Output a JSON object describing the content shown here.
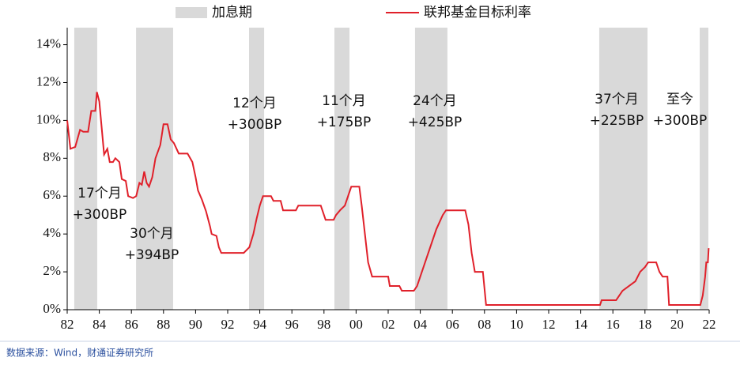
{
  "chart_data": {
    "type": "line",
    "shaded_name": "加息期",
    "shaded_color": "#d9d9d9",
    "shaded_periods": [
      [
        1982.44,
        1983.87
      ],
      [
        1986.29,
        1988.6
      ],
      [
        1993.33,
        1994.27
      ],
      [
        1998.65,
        1999.59
      ],
      [
        2003.67,
        2005.69
      ],
      [
        2015.15,
        2018.16
      ],
      [
        2021.41,
        2021.95
      ]
    ],
    "x": [
      1982.0,
      1982.2,
      1982.5,
      1982.8,
      1983.0,
      1983.3,
      1983.5,
      1983.75,
      1983.85,
      1984.0,
      1984.15,
      1984.3,
      1984.5,
      1984.65,
      1984.85,
      1985.0,
      1985.25,
      1985.4,
      1985.65,
      1985.8,
      1986.1,
      1986.3,
      1986.5,
      1986.65,
      1986.8,
      1986.95,
      1987.1,
      1987.3,
      1987.5,
      1987.8,
      1988.0,
      1988.25,
      1988.45,
      1988.65,
      1988.95,
      1989.5,
      1989.8,
      1990.0,
      1990.15,
      1990.4,
      1990.65,
      1990.9,
      1991.0,
      1991.3,
      1991.45,
      1991.6,
      1992.0,
      1993.0,
      1993.35,
      1993.6,
      1993.8,
      1994.0,
      1994.2,
      1994.7,
      1994.85,
      1995.3,
      1995.45,
      1996.25,
      1996.4,
      1997.8,
      1998.1,
      1998.6,
      1998.75,
      1999.0,
      1999.3,
      1999.5,
      1999.7,
      2000.2,
      2000.35,
      2000.55,
      2000.75,
      2001.0,
      2002.0,
      2002.1,
      2002.7,
      2002.85,
      2003.6,
      2003.8,
      2004.0,
      2004.3,
      2004.6,
      2005.0,
      2005.4,
      2005.6,
      2006.8,
      2007.0,
      2007.2,
      2007.4,
      2007.9,
      2008.1,
      2015.2,
      2015.3,
      2016.2,
      2016.4,
      2016.6,
      2017.0,
      2017.4,
      2017.7,
      2018.0,
      2018.2,
      2018.7,
      2018.9,
      2019.1,
      2019.4,
      2019.5,
      2021.45,
      2021.6,
      2021.75,
      2021.82,
      2021.92,
      2021.97
    ],
    "series": [
      {
        "name": "联邦基金目标利率",
        "color": "#e0202a",
        "values": [
          10.0,
          8.5,
          8.6,
          9.5,
          9.4,
          9.4,
          10.5,
          10.5,
          11.5,
          11.0,
          9.6,
          8.2,
          8.5,
          7.8,
          7.8,
          8.0,
          7.8,
          6.9,
          6.8,
          6.0,
          5.9,
          6.0,
          6.7,
          6.6,
          7.3,
          6.7,
          6.5,
          7.0,
          8.0,
          8.7,
          9.8,
          9.8,
          9.0,
          8.8,
          8.25,
          8.25,
          7.8,
          7.0,
          6.3,
          5.8,
          5.2,
          4.4,
          4.0,
          3.9,
          3.3,
          3.0,
          3.0,
          3.0,
          3.3,
          4.0,
          4.8,
          5.5,
          6.0,
          6.0,
          5.75,
          5.75,
          5.25,
          5.25,
          5.5,
          5.5,
          4.75,
          4.75,
          5.0,
          5.25,
          5.5,
          6.0,
          6.5,
          6.5,
          5.5,
          4.0,
          2.5,
          1.75,
          1.75,
          1.25,
          1.25,
          1.0,
          1.0,
          1.25,
          1.75,
          2.5,
          3.25,
          4.25,
          5.0,
          5.25,
          5.25,
          4.5,
          3.0,
          2.0,
          2.0,
          0.25,
          0.25,
          0.5,
          0.5,
          0.75,
          1.0,
          1.25,
          1.5,
          2.0,
          2.25,
          2.5,
          2.5,
          2.0,
          1.75,
          1.75,
          0.25,
          0.25,
          0.75,
          1.75,
          2.5,
          2.5,
          3.25
        ]
      }
    ],
    "xlim": [
      1982,
      2022
    ],
    "xticks": [
      {
        "value": 1982,
        "label": "82"
      },
      {
        "value": 1984,
        "label": "84"
      },
      {
        "value": 1986,
        "label": "86"
      },
      {
        "value": 1988,
        "label": "88"
      },
      {
        "value": 1990,
        "label": "90"
      },
      {
        "value": 1992,
        "label": "92"
      },
      {
        "value": 1994,
        "label": "94"
      },
      {
        "value": 1996,
        "label": "96"
      },
      {
        "value": 1998,
        "label": "98"
      },
      {
        "value": 2000,
        "label": "00"
      },
      {
        "value": 2002,
        "label": "02"
      },
      {
        "value": 2004,
        "label": "04"
      },
      {
        "value": 2006,
        "label": "06"
      },
      {
        "value": 2008,
        "label": "08"
      },
      {
        "value": 2010,
        "label": "10"
      },
      {
        "value": 2012,
        "label": "12"
      },
      {
        "value": 2014,
        "label": "14"
      },
      {
        "value": 2016,
        "label": "16"
      },
      {
        "value": 2018,
        "label": "18"
      },
      {
        "value": 2020,
        "label": "20"
      },
      {
        "value": 2022,
        "label": "22"
      }
    ],
    "ylim": [
      0,
      14.9
    ],
    "yticks": [
      {
        "value": 0,
        "label": "0%"
      },
      {
        "value": 2,
        "label": "2%"
      },
      {
        "value": 4,
        "label": "4%"
      },
      {
        "value": 6,
        "label": "6%"
      },
      {
        "value": 8,
        "label": "8%"
      },
      {
        "value": 10,
        "label": "10%"
      },
      {
        "value": 12,
        "label": "12%"
      },
      {
        "value": 14,
        "label": "14%"
      }
    ],
    "annotations": [
      [
        "17个月",
        "+300BP"
      ],
      [
        "30个月",
        "+394BP"
      ],
      [
        "12个月",
        "+300BP"
      ],
      [
        "11个月",
        "+175BP"
      ],
      [
        "24个月",
        "+425BP"
      ],
      [
        "37个月",
        "+225BP"
      ],
      [
        "至今",
        "+300BP"
      ]
    ],
    "source": "数据来源：Wind，财通证券研究所"
  }
}
